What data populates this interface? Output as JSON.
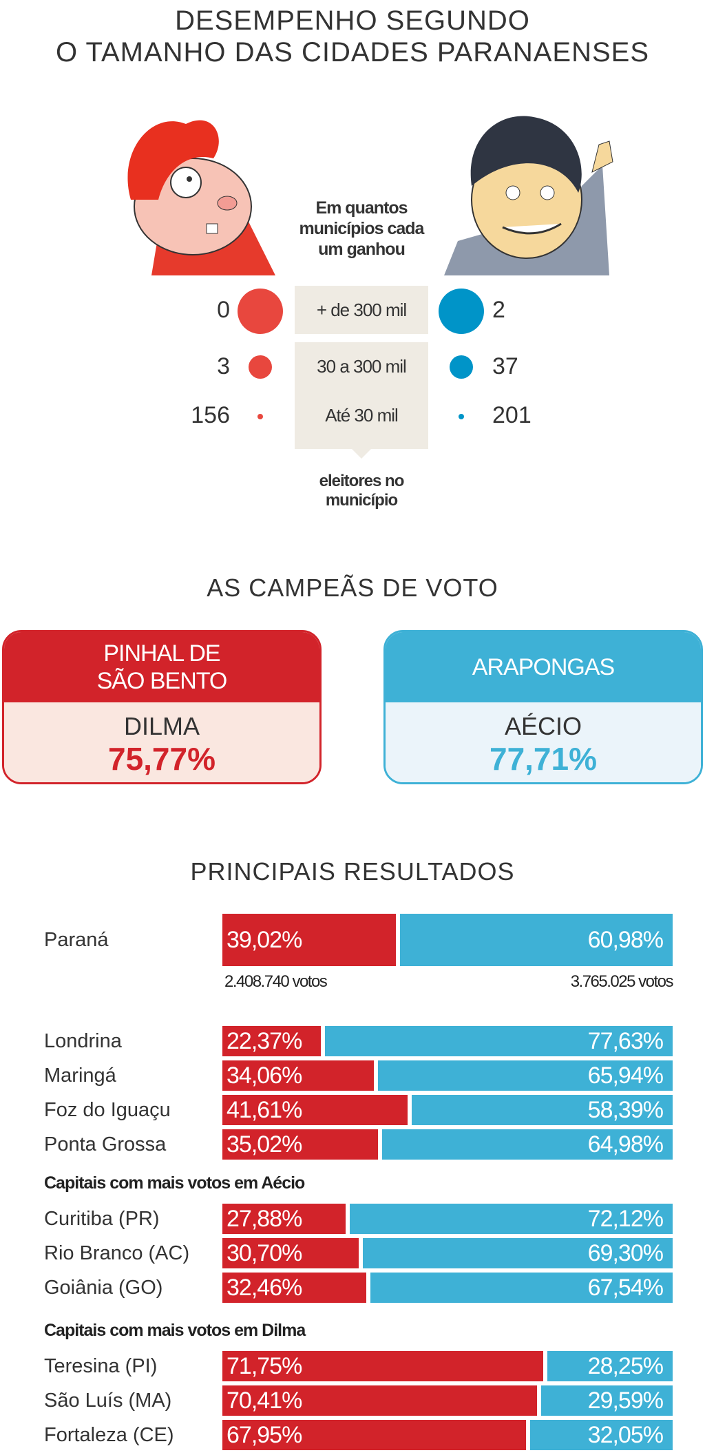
{
  "title_line1": "DESEMPENHO SEGUNDO",
  "title_line2": "O TAMANHO DAS CIDADES PARANAENSES",
  "size_section": {
    "note_lines": [
      "Em quantos",
      "municípios cada",
      "um ganhou"
    ],
    "footer_lines": [
      "eleitores no",
      "município"
    ],
    "rows": [
      {
        "category": "+ de 300 mil",
        "dilma": "0",
        "aecio": "2"
      },
      {
        "category": "30 a 300 mil",
        "dilma": "3",
        "aecio": "37"
      },
      {
        "category": "Até 30 mil",
        "dilma": "156",
        "aecio": "201"
      }
    ]
  },
  "champions": {
    "title": "AS CAMPEÃS DE VOTO",
    "dilma": {
      "city_lines": [
        "PINHAL DE",
        "SÃO BENTO"
      ],
      "candidate": "DILMA",
      "pct": "75,77%"
    },
    "aecio": {
      "city_lines": [
        "ARAPONGAS"
      ],
      "candidate": "AÉCIO",
      "pct": "77,71%"
    }
  },
  "colors": {
    "dilma": "#d2232a",
    "aecio": "#3eb1d6",
    "dilma_dot": "#e8473e",
    "aecio_dot": "#0094c8"
  },
  "chart_data": {
    "type": "bar",
    "title": "PRINCIPAIS RESULTADOS",
    "stacked": true,
    "series_names": [
      "Dilma",
      "Aécio"
    ],
    "groups": [
      "Capitais com mais votos em Aécio",
      "Capitais com mais votos em Dilma"
    ],
    "rows": [
      {
        "name": "Paraná",
        "dilma": 39.02,
        "aecio": 60.98,
        "dilma_label": "39,02%",
        "aecio_label": "60,98%",
        "dilma_votes": "2.408.740 votos",
        "aecio_votes": "3.765.025 votos"
      },
      {
        "name": "Londrina",
        "dilma": 22.37,
        "aecio": 77.63,
        "dilma_label": "22,37%",
        "aecio_label": "77,63%"
      },
      {
        "name": "Maringá",
        "dilma": 34.06,
        "aecio": 65.94,
        "dilma_label": "34,06%",
        "aecio_label": "65,94%"
      },
      {
        "name": "Foz do Iguaçu",
        "dilma": 41.61,
        "aecio": 58.39,
        "dilma_label": "41,61%",
        "aecio_label": "58,39%"
      },
      {
        "name": "Ponta Grossa",
        "dilma": 35.02,
        "aecio": 64.98,
        "dilma_label": "35,02%",
        "aecio_label": "64,98%"
      },
      {
        "name": "Curitiba (PR)",
        "dilma": 27.88,
        "aecio": 72.12,
        "dilma_label": "27,88%",
        "aecio_label": "72,12%"
      },
      {
        "name": "Rio Branco (AC)",
        "dilma": 30.7,
        "aecio": 69.3,
        "dilma_label": "30,70%",
        "aecio_label": "69,30%"
      },
      {
        "name": "Goiânia (GO)",
        "dilma": 32.46,
        "aecio": 67.54,
        "dilma_label": "32,46%",
        "aecio_label": "67,54%"
      },
      {
        "name": "Teresina (PI)",
        "dilma": 71.75,
        "aecio": 28.25,
        "dilma_label": "71,75%",
        "aecio_label": "28,25%"
      },
      {
        "name": "São Luís (MA)",
        "dilma": 70.41,
        "aecio": 29.59,
        "dilma_label": "70,41%",
        "aecio_label": "29,59%"
      },
      {
        "name": "Fortaleza (CE)",
        "dilma": 67.95,
        "aecio": 32.05,
        "dilma_label": "67,95%",
        "aecio_label": "32,05%"
      }
    ]
  }
}
